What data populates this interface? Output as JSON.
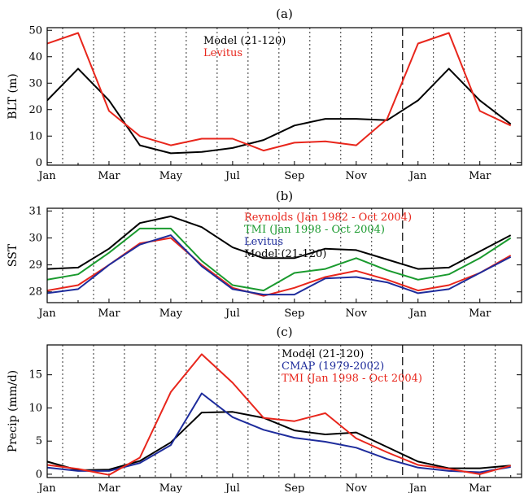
{
  "chart_data": [
    {
      "type": "line",
      "panel_label": "(a)",
      "ylabel": "BLT (m)",
      "ylim": [
        -1,
        51
      ],
      "yticks": [
        0,
        10,
        20,
        30,
        40,
        50
      ],
      "xtick_labels": [
        "Jan",
        "Mar",
        "May",
        "Jul",
        "Sep",
        "Nov",
        "Jan",
        "Mar"
      ],
      "x": [
        1,
        2,
        3,
        4,
        5,
        6,
        7,
        8,
        9,
        10,
        11,
        12,
        13,
        14,
        15,
        16
      ],
      "grid": "vertical dotted lines at each month, dashed line at December",
      "series": [
        {
          "name": "Model (21-120)",
          "color": "#000000",
          "values": [
            23.5,
            35.5,
            23.5,
            6.5,
            3.5,
            4.0,
            5.5,
            8.5,
            14.0,
            16.5,
            16.5,
            16.0,
            23.5,
            35.5,
            23.5,
            14.5
          ]
        },
        {
          "name": "Levitus",
          "color": "#e8261c",
          "values": [
            45.0,
            49.0,
            19.5,
            10.0,
            6.5,
            9.0,
            9.0,
            4.5,
            7.5,
            8.0,
            6.5,
            16.5,
            45.0,
            49.0,
            19.5,
            14.0
          ]
        }
      ]
    },
    {
      "type": "line",
      "panel_label": "(b)",
      "ylabel": "SST",
      "ylim": [
        27.6,
        31.1
      ],
      "yticks": [
        28,
        29,
        30,
        31
      ],
      "xtick_labels": [
        "Jan",
        "Mar",
        "May",
        "Jul",
        "Sep",
        "Nov",
        "Jan",
        "Mar"
      ],
      "x": [
        1,
        2,
        3,
        4,
        5,
        6,
        7,
        8,
        9,
        10,
        11,
        12,
        13,
        14,
        15,
        16
      ],
      "grid": "vertical dotted lines at each month, dashed line at December",
      "series": [
        {
          "name": "Reynolds (Jan 1982 - Oct 2004)",
          "color": "#e8261c",
          "values": [
            28.05,
            28.25,
            29.0,
            29.8,
            30.0,
            29.0,
            28.15,
            27.85,
            28.15,
            28.55,
            28.78,
            28.45,
            28.05,
            28.25,
            28.7,
            29.35
          ]
        },
        {
          "name": "TMI (Jan 1998 - Oct 2004)",
          "color": "#1a9a2e",
          "values": [
            28.45,
            28.65,
            29.45,
            30.35,
            30.35,
            29.15,
            28.25,
            28.05,
            28.7,
            28.85,
            29.25,
            28.8,
            28.45,
            28.65,
            29.25,
            30.0
          ]
        },
        {
          "name": "Levitus",
          "color": "#1e2c9c",
          "values": [
            27.95,
            28.1,
            29.0,
            29.75,
            30.1,
            28.95,
            28.1,
            27.9,
            27.9,
            28.5,
            28.55,
            28.35,
            27.95,
            28.1,
            28.7,
            29.3
          ]
        },
        {
          "name": "Model (21-120)",
          "color": "#000000",
          "values": [
            28.85,
            28.9,
            29.6,
            30.55,
            30.8,
            30.4,
            29.65,
            29.25,
            29.25,
            29.6,
            29.55,
            29.2,
            28.85,
            28.9,
            29.5,
            30.1
          ]
        }
      ]
    },
    {
      "type": "line",
      "panel_label": "(c)",
      "ylabel": "Precip (mm/d)",
      "ylim": [
        -0.5,
        19.5
      ],
      "yticks": [
        0,
        5,
        10,
        15
      ],
      "xtick_labels": [
        "Jan",
        "Mar",
        "May",
        "Jul",
        "Sep",
        "Nov",
        "Jan",
        "Mar"
      ],
      "x": [
        1,
        2,
        3,
        4,
        5,
        6,
        7,
        8,
        9,
        10,
        11,
        12,
        13,
        14,
        15,
        16
      ],
      "grid": "vertical dotted lines at each month, dashed line at December",
      "series": [
        {
          "name": "Model (21-120)",
          "color": "#000000",
          "values": [
            1.9,
            0.6,
            0.7,
            2.0,
            4.8,
            9.3,
            9.4,
            8.5,
            6.6,
            6.0,
            6.3,
            4.1,
            1.9,
            0.9,
            0.9,
            1.3
          ]
        },
        {
          "name": "CMAP (1979-2002)",
          "color": "#1e2c9c",
          "values": [
            1.0,
            0.5,
            0.5,
            1.7,
            4.4,
            12.2,
            8.6,
            6.7,
            5.5,
            4.9,
            4.0,
            2.3,
            1.0,
            0.5,
            0.3,
            1.1
          ]
        },
        {
          "name": "TMI (Jan 1998 - Oct 2004)",
          "color": "#e8261c",
          "values": [
            1.4,
            0.8,
            -0.1,
            2.5,
            12.4,
            18.1,
            13.8,
            8.5,
            8.0,
            9.2,
            5.4,
            3.3,
            1.4,
            0.8,
            0.0,
            1.3
          ]
        }
      ]
    }
  ]
}
